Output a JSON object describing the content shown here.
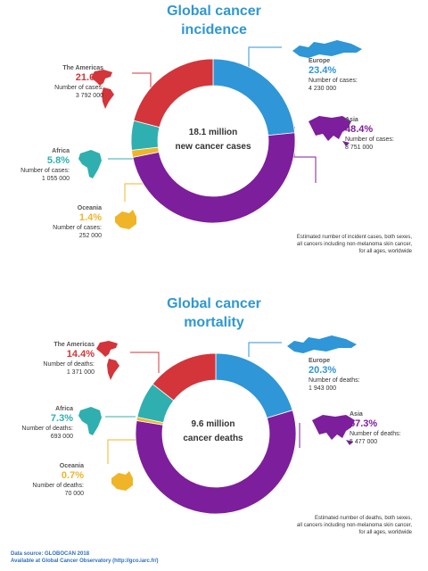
{
  "colors": {
    "Europe": "#2f96d7",
    "Asia": "#7d1e9c",
    "Oceania": "#f0b429",
    "Africa": "#2fafb0",
    "The Americas": "#d3353a",
    "title": "#2f98cf"
  },
  "chart_data": [
    {
      "type": "pie",
      "title": "Global cancer incidence",
      "center_label": [
        "18.1 million",
        "new cancer cases"
      ],
      "measure_label": "Number of cases:",
      "categories": [
        "Europe",
        "Asia",
        "Oceania",
        "Africa",
        "The Americas"
      ],
      "values": [
        23.4,
        48.4,
        1.4,
        5.8,
        21.0
      ],
      "pct_labels": [
        "23.4%",
        "48.4%",
        "1.4%",
        "5.8%",
        "21.0%"
      ],
      "counts": [
        "4 230 000",
        "8 751 000",
        "252 000",
        "1 055 000",
        "3 792 000"
      ],
      "note": [
        "Estimated number of incident cases, both sexes,",
        "all cancers including non-melanoma skin cancer,",
        "for all ages, worldwide"
      ]
    },
    {
      "type": "pie",
      "title": "Global cancer mortality",
      "center_label": [
        "9.6 million",
        "cancer deaths"
      ],
      "measure_label": "Number of deaths:",
      "categories": [
        "Europe",
        "Asia",
        "Oceania",
        "Africa",
        "The Americas"
      ],
      "values": [
        20.3,
        57.3,
        0.7,
        7.3,
        14.4
      ],
      "pct_labels": [
        "20.3%",
        "57.3%",
        "0.7%",
        "7.3%",
        "14.4%"
      ],
      "counts": [
        "1 943 000",
        "5 477 000",
        "70 000",
        "693 000",
        "1 371 000"
      ],
      "note": [
        "Estimated number of deaths, both sexes,",
        "all cancers including non-melanoma skin cancer,",
        "for all ages, worldwide"
      ]
    }
  ],
  "source": {
    "line1": "Data source: GLOBOCAN 2018",
    "line2": "Available at Global Cancer Observatory (http://gco.iarc.fr/)"
  },
  "icons": [
    "americas-map-icon",
    "europe-map-icon",
    "asia-map-icon",
    "africa-map-icon",
    "oceania-map-icon"
  ]
}
